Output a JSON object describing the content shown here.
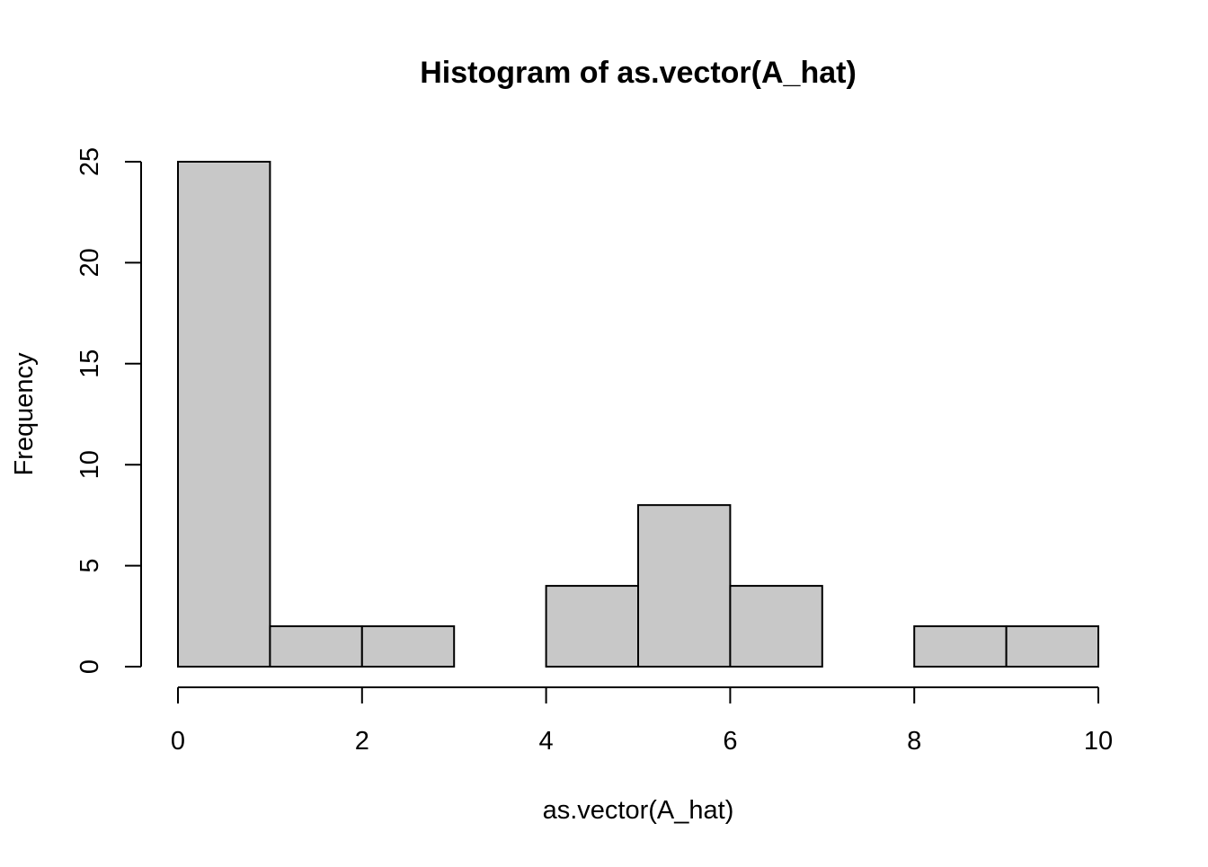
{
  "chart_data": {
    "type": "bar",
    "subtype": "histogram",
    "title": "Histogram of as.vector(A_hat)",
    "xlabel": "as.vector(A_hat)",
    "ylabel": "Frequency",
    "bin_edges": [
      0,
      1,
      2,
      3,
      4,
      5,
      6,
      7,
      8,
      9,
      10
    ],
    "values": [
      25,
      2,
      2,
      0,
      4,
      8,
      4,
      0,
      2,
      2
    ],
    "xlim": [
      0,
      10
    ],
    "ylim": [
      0,
      25
    ],
    "x_ticks": [
      "0",
      "2",
      "4",
      "6",
      "8",
      "10"
    ],
    "y_ticks": [
      "0",
      "5",
      "10",
      "15",
      "20",
      "25"
    ],
    "grid": false,
    "legend": "none",
    "bar_fill": "#c8c8c8",
    "bar_edge": "#000000"
  }
}
